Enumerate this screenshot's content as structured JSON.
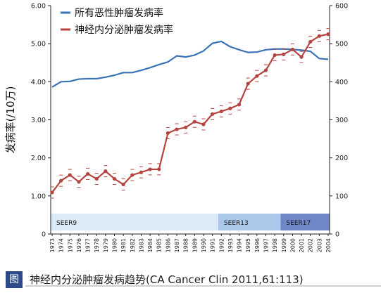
{
  "chart_data": {
    "type": "line",
    "ylabel": "发病率(/10万)",
    "categories": [
      "1973",
      "1974",
      "1975",
      "1976",
      "1977",
      "1978",
      "1979",
      "1980",
      "1981",
      "1982",
      "1983",
      "1984",
      "1985",
      "1986",
      "1987",
      "1988",
      "1989",
      "1990",
      "1991",
      "1992",
      "1993",
      "1994",
      "1995",
      "1996",
      "1997",
      "1998",
      "1999",
      "2000",
      "2001",
      "2002",
      "2003",
      "2004"
    ],
    "left_axis": {
      "ticks": [
        "0",
        "1.00",
        "2.00",
        "3.00",
        "4.00",
        "5.00",
        "6.00"
      ],
      "range": [
        0,
        6
      ],
      "top_label": "6.00"
    },
    "right_axis": {
      "ticks": [
        "0",
        "100",
        "200",
        "300",
        "400",
        "500",
        "600"
      ],
      "range": [
        0,
        600
      ]
    },
    "series": [
      {
        "name": "所有恶性肿瘤发病率",
        "axis": "right",
        "color": "#3a73b5",
        "values": [
          386,
          400,
          401,
          407,
          408,
          408,
          412,
          417,
          424,
          424,
          430,
          437,
          445,
          452,
          468,
          465,
          470,
          481,
          501,
          506,
          492,
          484,
          477,
          478,
          484,
          486,
          486,
          485,
          483,
          480,
          461,
          459
        ]
      },
      {
        "name": "神经内分泌肿瘤发病率",
        "axis": "left",
        "color": "#b5433f",
        "values": [
          1.09,
          1.4,
          1.55,
          1.37,
          1.58,
          1.45,
          1.65,
          1.45,
          1.3,
          1.55,
          1.62,
          1.7,
          1.7,
          2.65,
          2.75,
          2.8,
          2.95,
          2.88,
          3.15,
          3.22,
          3.3,
          3.4,
          3.95,
          4.15,
          4.3,
          4.7,
          4.72,
          4.85,
          4.65,
          5.05,
          5.2,
          5.25
        ]
      }
    ],
    "bands": [
      {
        "label": "SEER9",
        "from": "1973",
        "to": "1992",
        "color": "#dbeaf6"
      },
      {
        "label": "SEER13",
        "from": "1992",
        "to": "1999",
        "color": "#a9c8ea"
      },
      {
        "label": "SEER17",
        "from": "1999",
        "to": "2004",
        "color": "#6f86c8"
      }
    ],
    "legend_position": "top-left",
    "grid": false
  },
  "caption": {
    "badge": "图",
    "text": "神经内分泌肿瘤发病趋势(CA Cancer Clin 2011,61:113)"
  }
}
